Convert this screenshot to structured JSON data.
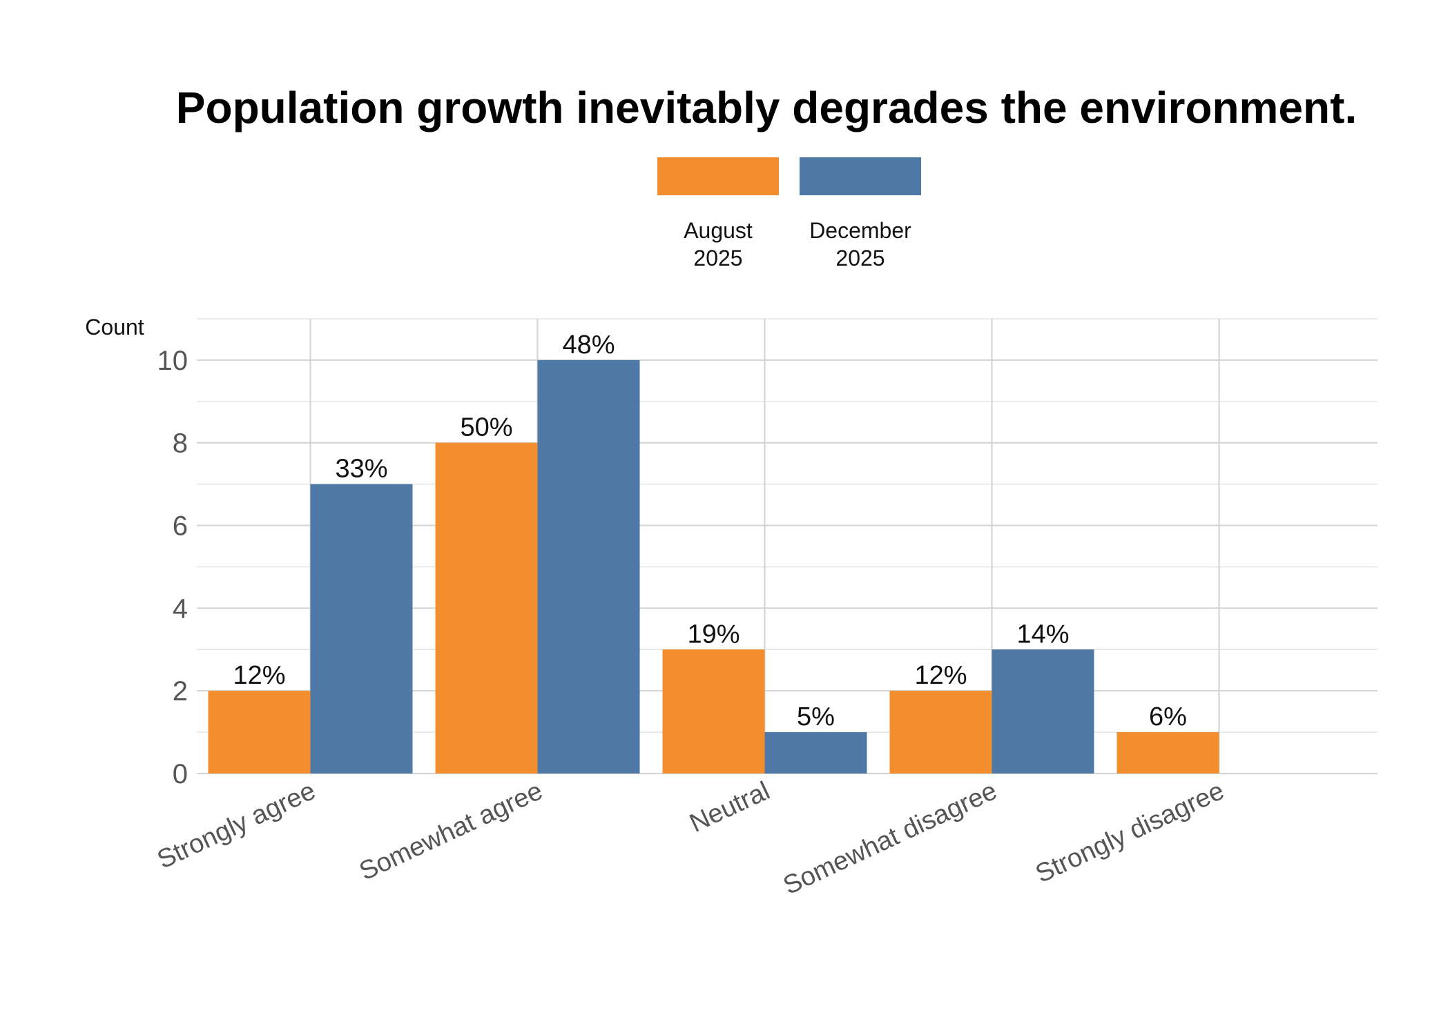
{
  "chart_data": {
    "type": "bar",
    "title": "Population growth inevitably degrades the environment.",
    "xlabel": "",
    "ylabel": "Count",
    "categories": [
      "Strongly agree",
      "Somewhat agree",
      "Neutral",
      "Somewhat disagree",
      "Strongly disagree"
    ],
    "series": [
      {
        "name": "August 2025",
        "name_lines": [
          "August",
          "2025"
        ],
        "color": "#f28e2e",
        "values": [
          2,
          8,
          3,
          2,
          1
        ],
        "labels": [
          "12%",
          "50%",
          "19%",
          "12%",
          "6%"
        ]
      },
      {
        "name": "December 2025",
        "name_lines": [
          "December",
          "2025"
        ],
        "color": "#4e79a7",
        "values": [
          7,
          10,
          1,
          3,
          0
        ],
        "labels": [
          "33%",
          "48%",
          "5%",
          "14%",
          ""
        ]
      }
    ],
    "ylim": [
      0,
      11
    ],
    "yticks": [
      0,
      2,
      4,
      6,
      8,
      10
    ],
    "grid": true,
    "legend_position": "top"
  }
}
